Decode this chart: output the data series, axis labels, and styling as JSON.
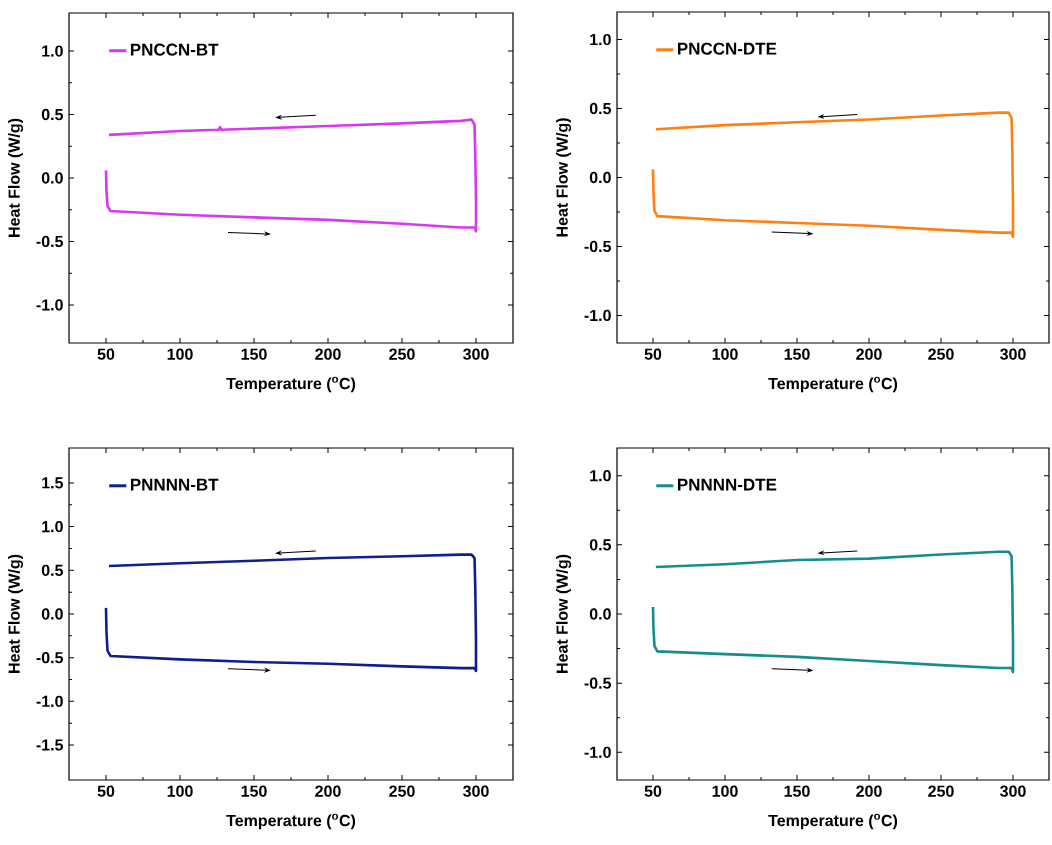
{
  "chart_data": [
    {
      "type": "line",
      "xlabel": "Temperature ($^{o}$C)",
      "ylabel": "Heat Flow (W/g)",
      "xlim": [
        25,
        325
      ],
      "ylim": [
        -1.3,
        1.3
      ],
      "xticks": [
        50,
        100,
        150,
        200,
        250,
        300
      ],
      "yticks": [
        {
          "value": -1,
          "label": "-1.0"
        },
        -0.5,
        {
          "value": 0,
          "label": "0.0"
        },
        0.5,
        {
          "value": 1,
          "label": "1.0"
        }
      ],
      "legend": "top left",
      "series": [
        {
          "name": "PNCCN-BT",
          "color": "#d63af0",
          "x": [
            50,
            50.3,
            51,
            53,
            100,
            150,
            200,
            250,
            290,
            299,
            300,
            300,
            299.5,
            299,
            297,
            290,
            250,
            200,
            128,
            127,
            126,
            100,
            52
          ],
          "values": [
            0.06,
            -0.1,
            -0.22,
            -0.26,
            -0.29,
            -0.31,
            -0.33,
            -0.36,
            -0.39,
            -0.39,
            -0.42,
            -0.2,
            0.2,
            0.42,
            0.46,
            0.45,
            0.43,
            0.41,
            0.38,
            0.4,
            0.38,
            0.37,
            0.34
          ]
        }
      ]
    },
    {
      "type": "line",
      "xlabel": "Temperature ($^{o}$C)",
      "ylabel": "Heat Flow (W/g)",
      "xlim": [
        25,
        325
      ],
      "ylim": [
        -1.2,
        1.2
      ],
      "xticks": [
        50,
        100,
        150,
        200,
        250,
        300
      ],
      "yticks": [
        {
          "value": -1,
          "label": "-1.0"
        },
        -0.5,
        {
          "value": 0,
          "label": "0.0"
        },
        0.5,
        {
          "value": 1,
          "label": "1.0"
        }
      ],
      "legend": "top left",
      "series": [
        {
          "name": "PNCCN-DTE",
          "color": "#ff8010",
          "x": [
            50,
            50.3,
            51,
            53,
            100,
            150,
            200,
            250,
            290,
            299,
            300,
            300,
            299.5,
            299,
            297,
            290,
            250,
            200,
            150,
            100,
            52
          ],
          "values": [
            0.06,
            -0.1,
            -0.24,
            -0.28,
            -0.31,
            -0.33,
            -0.35,
            -0.38,
            -0.4,
            -0.4,
            -0.43,
            -0.2,
            0.2,
            0.43,
            0.47,
            0.47,
            0.45,
            0.42,
            0.4,
            0.38,
            0.35
          ]
        }
      ]
    },
    {
      "type": "line",
      "xlabel": "Temperature ($^{o}$C)",
      "ylabel": "Heat Flow (W/g)",
      "xlim": [
        25,
        325
      ],
      "ylim": [
        -1.9,
        1.9
      ],
      "xticks": [
        50,
        100,
        150,
        200,
        250,
        300
      ],
      "yticks": [
        -1.5,
        {
          "value": -1,
          "label": "-1.0"
        },
        -0.5,
        {
          "value": 0,
          "label": "0.0"
        },
        0.5,
        {
          "value": 1,
          "label": "1.0"
        },
        1.5
      ],
      "legend": "top left",
      "series": [
        {
          "name": "PNNNN-BT",
          "color": "#0f1f8c",
          "x": [
            50,
            50.3,
            51,
            53,
            100,
            150,
            200,
            250,
            290,
            299,
            300,
            300,
            299.5,
            299,
            297,
            290,
            250,
            200,
            150,
            100,
            52
          ],
          "values": [
            0.07,
            -0.2,
            -0.42,
            -0.48,
            -0.52,
            -0.55,
            -0.57,
            -0.6,
            -0.62,
            -0.62,
            -0.65,
            -0.3,
            0.3,
            0.64,
            0.68,
            0.68,
            0.66,
            0.64,
            0.61,
            0.58,
            0.55
          ]
        }
      ]
    },
    {
      "type": "line",
      "xlabel": "Temperature ($^{o}$C)",
      "ylabel": "Heat Flow (W/g)",
      "xlim": [
        25,
        325
      ],
      "ylim": [
        -1.2,
        1.2
      ],
      "xticks": [
        50,
        100,
        150,
        200,
        250,
        300
      ],
      "yticks": [
        {
          "value": -1,
          "label": "-1.0"
        },
        -0.5,
        {
          "value": 0,
          "label": "0.0"
        },
        0.5,
        {
          "value": 1,
          "label": "1.0"
        }
      ],
      "legend": "top left",
      "series": [
        {
          "name": "PNNNN-DTE",
          "color": "#168c8c",
          "x": [
            50,
            50.3,
            51,
            53,
            100,
            150,
            200,
            250,
            290,
            299,
            300,
            300,
            299.5,
            299,
            297,
            290,
            250,
            200,
            150,
            100,
            52
          ],
          "values": [
            0.05,
            -0.1,
            -0.23,
            -0.27,
            -0.29,
            -0.31,
            -0.34,
            -0.37,
            -0.39,
            -0.39,
            -0.42,
            -0.2,
            0.2,
            0.42,
            0.45,
            0.45,
            0.43,
            0.4,
            0.39,
            0.36,
            0.34
          ]
        }
      ]
    }
  ]
}
